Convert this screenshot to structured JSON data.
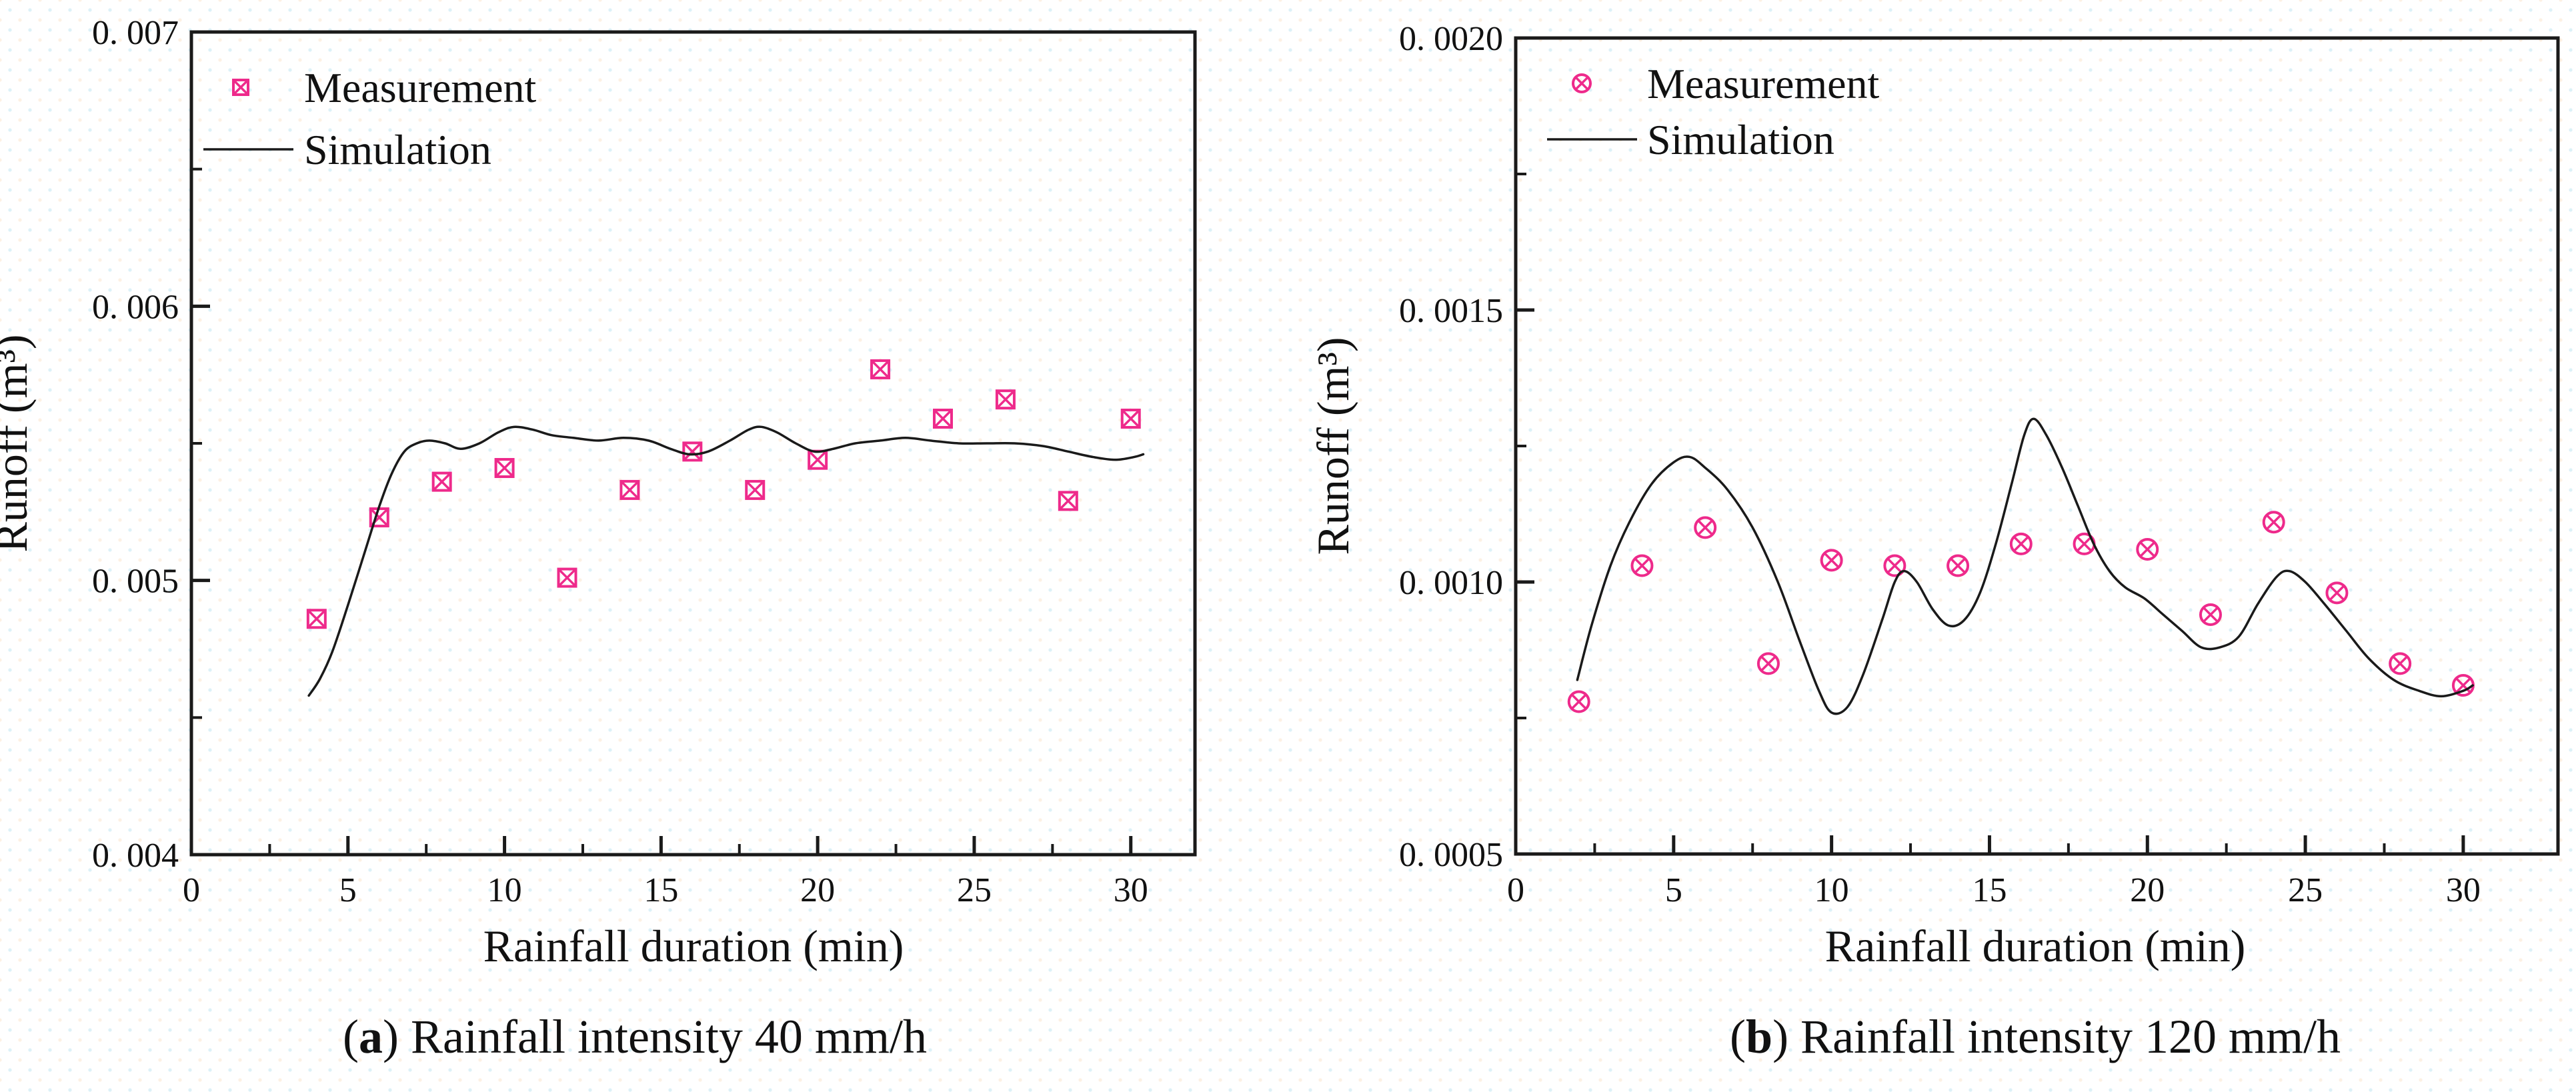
{
  "figure": {
    "colors": {
      "measurement": "#ee2a8b",
      "simulation": "#1a1a1a",
      "axis": "#1a1a1a",
      "text": "#111111"
    }
  },
  "captions": {
    "a": {
      "open": "(",
      "letter": "a",
      "rest": ") Rainfall intensity 40 mm/h"
    },
    "b": {
      "open": "(",
      "letter": "b",
      "rest": ") Rainfall intensity 120 mm/h"
    }
  },
  "chart_data": [
    {
      "panel": "a",
      "type": "scatter",
      "caption": "(a) Rainfall intensity 40 mm/h",
      "xlabel": "Rainfall duration (min)",
      "ylabel": "Runoff (m³)",
      "xlim": [
        0,
        32.05
      ],
      "ylim": [
        0.004,
        0.007
      ],
      "x_major_ticks": [
        0,
        5,
        10,
        15,
        20,
        25,
        30
      ],
      "x_tick_labels": [
        "0",
        "5",
        "10",
        "15",
        "20",
        "25",
        "30"
      ],
      "x_minor_ticks": [
        2.5,
        7.5,
        12.5,
        17.5,
        22.5,
        27.5
      ],
      "y_major_ticks": [
        0.004,
        0.005,
        0.006,
        0.007
      ],
      "y_tick_labels": [
        "0. 004",
        "0. 005",
        "0. 006",
        "0. 007"
      ],
      "y_minor_ticks": [
        0.0045,
        0.0055,
        0.0065
      ],
      "legend": [
        {
          "label": "Measurement",
          "marker": "boxed-x"
        },
        {
          "label": "Simulation",
          "marker": "line"
        }
      ],
      "series": [
        {
          "name": "Measurement",
          "type": "scatter",
          "marker": "boxed-x",
          "x": [
            4,
            6,
            8,
            10,
            12,
            14,
            16,
            18,
            20,
            22,
            24,
            26,
            28,
            30
          ],
          "y": [
            0.00486,
            0.00523,
            0.00536,
            0.00541,
            0.00501,
            0.00533,
            0.00547,
            0.00533,
            0.00544,
            0.00577,
            0.00559,
            0.00566,
            0.00529,
            0.00559
          ]
        },
        {
          "name": "Simulation",
          "type": "line",
          "points": [
            [
              3.75,
              0.00458
            ],
            [
              4.1,
              0.00464
            ],
            [
              4.5,
              0.00474
            ],
            [
              5.0,
              0.00491
            ],
            [
              5.5,
              0.00509
            ],
            [
              6.0,
              0.00527
            ],
            [
              6.4,
              0.00539
            ],
            [
              6.8,
              0.00547
            ],
            [
              7.2,
              0.0055
            ],
            [
              7.6,
              0.00551
            ],
            [
              8.1,
              0.0055
            ],
            [
              8.6,
              0.00548
            ],
            [
              9.2,
              0.0055
            ],
            [
              9.8,
              0.00554
            ],
            [
              10.3,
              0.00556
            ],
            [
              10.9,
              0.00555
            ],
            [
              11.5,
              0.00553
            ],
            [
              12.2,
              0.00552
            ],
            [
              13.0,
              0.00551
            ],
            [
              13.8,
              0.00552
            ],
            [
              14.6,
              0.00551
            ],
            [
              15.3,
              0.00548
            ],
            [
              15.9,
              0.00546
            ],
            [
              16.5,
              0.00547
            ],
            [
              17.2,
              0.00551
            ],
            [
              17.8,
              0.00555
            ],
            [
              18.2,
              0.00556
            ],
            [
              18.7,
              0.00554
            ],
            [
              19.3,
              0.0055
            ],
            [
              19.9,
              0.00547
            ],
            [
              20.5,
              0.00548
            ],
            [
              21.2,
              0.0055
            ],
            [
              22.0,
              0.00551
            ],
            [
              22.8,
              0.00552
            ],
            [
              23.6,
              0.00551
            ],
            [
              24.5,
              0.0055
            ],
            [
              25.4,
              0.0055
            ],
            [
              26.3,
              0.0055
            ],
            [
              27.2,
              0.00549
            ],
            [
              28.0,
              0.00547
            ],
            [
              28.8,
              0.00545
            ],
            [
              29.5,
              0.00544
            ],
            [
              30.1,
              0.00545
            ],
            [
              30.4,
              0.00546
            ]
          ]
        }
      ]
    },
    {
      "panel": "b",
      "type": "scatter",
      "caption": "(b) Rainfall intensity 120 mm/h",
      "xlabel": "Rainfall duration (min)",
      "ylabel": "Runoff (m³)",
      "xlim": [
        0,
        33.0
      ],
      "ylim": [
        0.0005,
        0.002
      ],
      "x_major_ticks": [
        0,
        5,
        10,
        15,
        20,
        25,
        30
      ],
      "x_tick_labels": [
        "0",
        "5",
        "10",
        "15",
        "20",
        "25",
        "30"
      ],
      "x_minor_ticks": [
        2.5,
        7.5,
        12.5,
        17.5,
        22.5,
        27.5
      ],
      "y_major_ticks": [
        0.0005,
        0.001,
        0.0015,
        0.002
      ],
      "y_tick_labels": [
        "0. 0005",
        "0. 0010",
        "0. 0015",
        "0. 0020"
      ],
      "y_minor_ticks": [
        0.00075,
        0.00125,
        0.00175
      ],
      "legend": [
        {
          "label": "Measurement",
          "marker": "circled-x"
        },
        {
          "label": "Simulation",
          "marker": "line"
        }
      ],
      "series": [
        {
          "name": "Measurement",
          "type": "scatter",
          "marker": "circled-x",
          "x": [
            2,
            4,
            6,
            8,
            10,
            12,
            14,
            16,
            18,
            20,
            22,
            24,
            26,
            28,
            30
          ],
          "y": [
            0.00078,
            0.00103,
            0.0011,
            0.00085,
            0.00104,
            0.00103,
            0.00103,
            0.00107,
            0.00107,
            0.00106,
            0.00094,
            0.00111,
            0.00098,
            0.00085,
            0.00081
          ]
        },
        {
          "name": "Simulation",
          "type": "line",
          "points": [
            [
              1.95,
              0.00082
            ],
            [
              2.4,
              0.00092
            ],
            [
              3.0,
              0.00103
            ],
            [
              3.6,
              0.00111
            ],
            [
              4.3,
              0.00118
            ],
            [
              5.0,
              0.00122
            ],
            [
              5.5,
              0.00123
            ],
            [
              6.0,
              0.00121
            ],
            [
              6.7,
              0.00117
            ],
            [
              7.5,
              0.0011
            ],
            [
              8.3,
              0.001
            ],
            [
              9.0,
              0.00089
            ],
            [
              9.6,
              0.0008
            ],
            [
              10.0,
              0.00076
            ],
            [
              10.5,
              0.00077
            ],
            [
              11.0,
              0.00083
            ],
            [
              11.6,
              0.00093
            ],
            [
              12.0,
              0.001
            ],
            [
              12.3,
              0.00102
            ],
            [
              12.7,
              0.001
            ],
            [
              13.2,
              0.00095
            ],
            [
              13.7,
              0.00092
            ],
            [
              14.2,
              0.00093
            ],
            [
              14.7,
              0.00098
            ],
            [
              15.2,
              0.00107
            ],
            [
              15.7,
              0.00118
            ],
            [
              16.1,
              0.00127
            ],
            [
              16.4,
              0.0013
            ],
            [
              16.8,
              0.00127
            ],
            [
              17.3,
              0.00121
            ],
            [
              17.8,
              0.00114
            ],
            [
              18.3,
              0.00107
            ],
            [
              18.8,
              0.00102
            ],
            [
              19.3,
              0.00099
            ],
            [
              19.9,
              0.00097
            ],
            [
              20.5,
              0.00094
            ],
            [
              21.1,
              0.00091
            ],
            [
              21.7,
              0.00088
            ],
            [
              22.3,
              0.00088
            ],
            [
              22.9,
              0.0009
            ],
            [
              23.5,
              0.00096
            ],
            [
              24.1,
              0.00101
            ],
            [
              24.5,
              0.00102
            ],
            [
              25.0,
              0.001
            ],
            [
              25.6,
              0.00096
            ],
            [
              26.3,
              0.00091
            ],
            [
              27.0,
              0.00086
            ],
            [
              27.8,
              0.00082
            ],
            [
              28.6,
              0.0008
            ],
            [
              29.3,
              0.00079
            ],
            [
              30.0,
              0.0008
            ],
            [
              30.3,
              0.00081
            ]
          ]
        }
      ]
    }
  ]
}
